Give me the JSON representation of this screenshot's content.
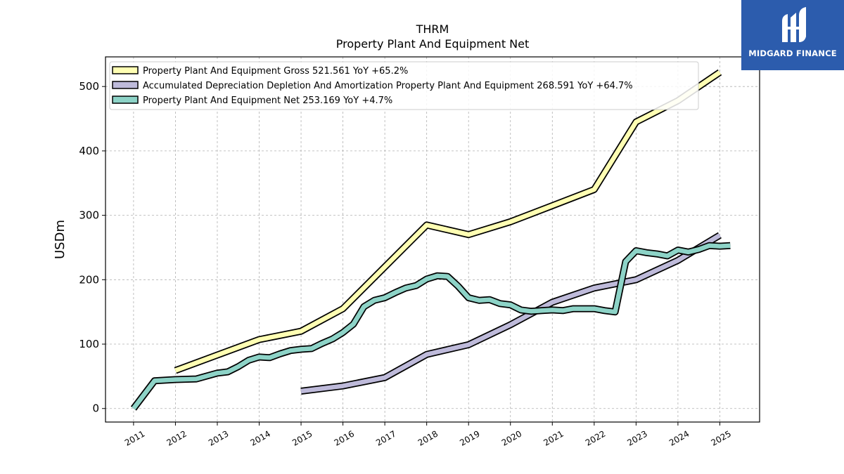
{
  "brand": {
    "name": "MIDGARD FINANCE",
    "bg_color": "#2c5cad"
  },
  "chart_data": {
    "type": "line",
    "title": "THRM",
    "subtitle": "Property Plant And Equipment Net",
    "ylabel": "USDm",
    "xlabel": "",
    "ylim": [
      -21,
      546
    ],
    "xlim": [
      2010.33,
      2025.95
    ],
    "yticks": [
      0,
      100,
      200,
      300,
      400,
      500
    ],
    "xticks": [
      "2011",
      "2012",
      "2013",
      "2014",
      "2015",
      "2016",
      "2017",
      "2018",
      "2019",
      "2020",
      "2021",
      "2022",
      "2023",
      "2024",
      "2025"
    ],
    "grid": true,
    "legend_position": "top-left",
    "series": [
      {
        "name": "Property Plant And Equipment Gross",
        "legend_label": "Property Plant And Equipment Gross  521.561 YoY +65.2%",
        "color": "#ffffb3",
        "x": [
          "2012-01-01",
          "2013-01-01",
          "2014-01-01",
          "2015-01-01",
          "2016-01-01",
          "2018-01-01",
          "2019-01-01",
          "2020-01-01",
          "2021-01-01",
          "2022-01-01",
          "2023-01-01",
          "2024-01-01",
          "2025-01-01"
        ],
        "y": [
          59,
          83,
          107,
          120,
          155,
          285,
          270,
          290,
          315,
          340,
          445,
          478,
          522
        ]
      },
      {
        "name": "Accumulated Depreciation Depletion And Amortization Property Plant And Equipment",
        "legend_label": "Accumulated Depreciation Depletion And Amortization Property Plant And Equipment  268.591 YoY +64.7%",
        "color": "#bebada",
        "x": [
          "2015-01-01",
          "2016-01-01",
          "2017-01-01",
          "2018-01-01",
          "2019-01-01",
          "2020-01-01",
          "2021-01-01",
          "2022-01-01",
          "2023-01-01",
          "2024-01-01",
          "2025-01-01"
        ],
        "y": [
          27,
          35,
          48,
          84,
          99,
          130,
          165,
          187,
          200,
          230,
          269
        ]
      },
      {
        "name": "Property Plant And Equipment Net",
        "legend_label": "Property Plant And Equipment Net  253.169 YoY +4.7%",
        "color": "#8dd3c7",
        "x": [
          "2011-01-01",
          "2011-07-01",
          "2012-01-01",
          "2012-07-01",
          "2013-01-01",
          "2013-04-01",
          "2013-07-01",
          "2013-10-01",
          "2014-01-01",
          "2014-04-01",
          "2014-07-01",
          "2014-10-01",
          "2015-01-01",
          "2015-04-01",
          "2015-07-01",
          "2015-10-01",
          "2016-01-01",
          "2016-04-01",
          "2016-07-01",
          "2016-10-01",
          "2017-01-01",
          "2017-04-01",
          "2017-07-01",
          "2017-10-01",
          "2018-01-01",
          "2018-04-01",
          "2018-07-01",
          "2018-10-01",
          "2019-01-01",
          "2019-04-01",
          "2019-07-01",
          "2019-10-01",
          "2020-01-01",
          "2020-04-01",
          "2020-07-01",
          "2020-10-01",
          "2021-01-01",
          "2021-04-01",
          "2021-07-01",
          "2021-10-01",
          "2022-01-01",
          "2022-04-01",
          "2022-07-01",
          "2022-10-01",
          "2023-01-01",
          "2023-04-01",
          "2023-07-01",
          "2023-10-01",
          "2024-01-01",
          "2024-04-01",
          "2024-07-01",
          "2024-10-01",
          "2025-01-01",
          "2025-04-01"
        ],
        "y": [
          0,
          43,
          45,
          46,
          55,
          57,
          65,
          75,
          80,
          79,
          85,
          90,
          92,
          93,
          101,
          108,
          118,
          131,
          158,
          168,
          172,
          180,
          187,
          191,
          201,
          206,
          205,
          190,
          172,
          168,
          169,
          163,
          161,
          153,
          151,
          152,
          153,
          152,
          155,
          155,
          155,
          152,
          150,
          228,
          245,
          242,
          240,
          237,
          246,
          243,
          247,
          253,
          252,
          253
        ]
      }
    ]
  }
}
